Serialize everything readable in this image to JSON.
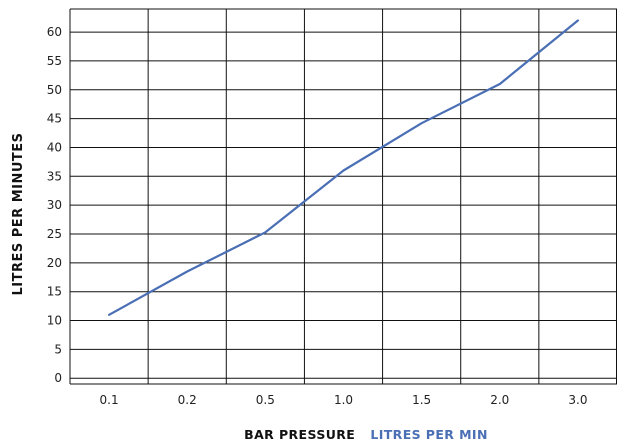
{
  "chart_data": {
    "type": "line",
    "categories": [
      "0.1",
      "0.2",
      "0.5",
      "1.0",
      "1.5",
      "2.0",
      "3.0"
    ],
    "series": [
      {
        "name": "LITRES PER MIN",
        "values": [
          11,
          18.5,
          25.3,
          36,
          44.2,
          51,
          62
        ],
        "color": "#4a6fb5"
      }
    ],
    "yticks": [
      0,
      5,
      10,
      15,
      20,
      25,
      30,
      35,
      40,
      45,
      50,
      55,
      60
    ],
    "ylim": [
      -1,
      64
    ],
    "ylabel": "LITRES PER MINUTES",
    "xlabel": "BAR PRESSURE",
    "legend_label": "LITRES PER MIN",
    "legend_placement": "bottom",
    "grid": true
  }
}
